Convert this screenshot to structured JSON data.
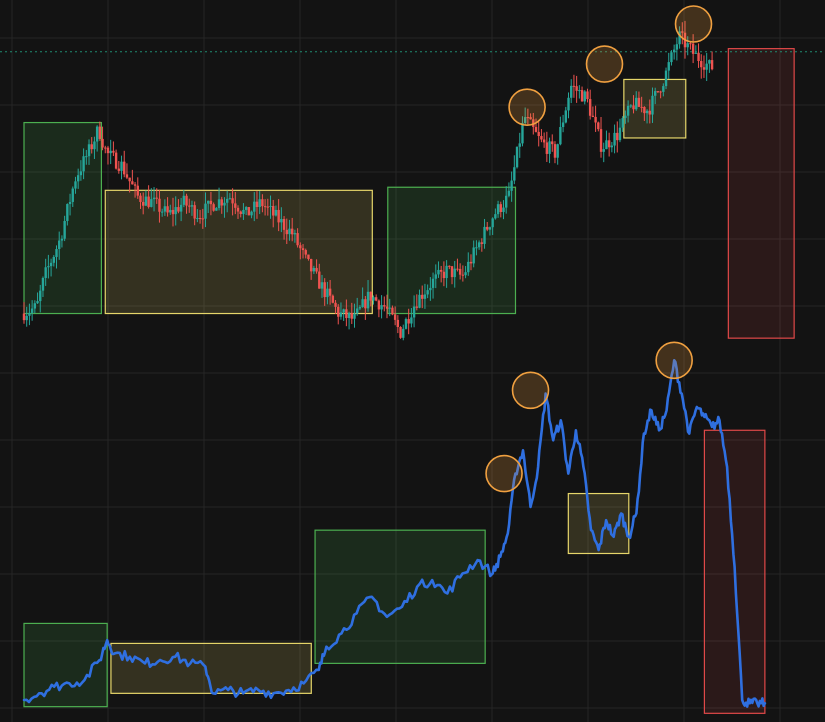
{
  "colors": {
    "background": "#131313",
    "grid": "#262626",
    "bull": "#26a69a",
    "bear": "#ef5350",
    "line": "#2f6fe0",
    "reference": "#1f8a70",
    "zone_green": "#4caf50",
    "zone_yellow": "#e6d66a",
    "zone_red": "#e04848",
    "marker": "#f0a040"
  },
  "chart_data": [
    {
      "type": "candlestick",
      "title": "",
      "xlabel": "",
      "ylabel": "",
      "grid": true,
      "xlim": [
        0,
        100
      ],
      "ylim": [
        0,
        100
      ],
      "reference_line": 91,
      "anchors": [
        [
          0,
          6
        ],
        [
          2,
          8
        ],
        [
          3,
          18
        ],
        [
          5,
          30
        ],
        [
          7,
          50
        ],
        [
          9,
          60
        ],
        [
          10,
          66
        ],
        [
          11,
          58
        ],
        [
          13,
          54
        ],
        [
          15,
          44
        ],
        [
          17,
          42
        ],
        [
          19,
          38
        ],
        [
          21,
          42
        ],
        [
          23,
          38
        ],
        [
          25,
          42
        ],
        [
          27,
          44
        ],
        [
          29,
          38
        ],
        [
          31,
          42
        ],
        [
          33,
          37
        ],
        [
          35,
          32
        ],
        [
          37,
          22
        ],
        [
          39,
          14
        ],
        [
          41,
          6
        ],
        [
          43,
          4
        ],
        [
          45,
          12
        ],
        [
          47,
          8
        ],
        [
          49,
          0
        ],
        [
          51,
          10
        ],
        [
          53,
          16
        ],
        [
          55,
          20
        ],
        [
          57,
          18
        ],
        [
          59,
          28
        ],
        [
          61,
          38
        ],
        [
          63,
          44
        ],
        [
          65,
          70
        ],
        [
          67,
          62
        ],
        [
          69,
          58
        ],
        [
          71,
          80
        ],
        [
          73,
          76
        ],
        [
          75,
          60
        ],
        [
          77,
          64
        ],
        [
          79,
          74
        ],
        [
          81,
          72
        ],
        [
          83,
          82
        ],
        [
          85,
          96
        ],
        [
          87,
          90
        ],
        [
          89,
          86
        ]
      ],
      "zones": [
        {
          "type": "accumulation",
          "color": "green",
          "x0": 0,
          "x1": 10,
          "y0": 6,
          "y1": 68
        },
        {
          "type": "range",
          "color": "yellow",
          "x0": 10.5,
          "x1": 45,
          "y0": 6,
          "y1": 46
        },
        {
          "type": "accumulation",
          "color": "green",
          "x0": 47,
          "x1": 63.5,
          "y0": 6,
          "y1": 47
        },
        {
          "type": "range",
          "color": "yellow",
          "x0": 77.5,
          "x1": 85.5,
          "y0": 63,
          "y1": 82
        },
        {
          "type": "decline",
          "color": "red",
          "x0": 91,
          "x1": 99.5,
          "y0": -2,
          "y1": 92
        }
      ],
      "peaks": [
        {
          "x": 65,
          "y": 73
        },
        {
          "x": 75,
          "y": 87
        },
        {
          "x": 86.5,
          "y": 100
        }
      ]
    },
    {
      "type": "line",
      "title": "",
      "xlabel": "",
      "ylabel": "",
      "grid": true,
      "xlim": [
        0,
        100
      ],
      "ylim": [
        0,
        100
      ],
      "points": [
        [
          0,
          0
        ],
        [
          2,
          2
        ],
        [
          4,
          4
        ],
        [
          6,
          5
        ],
        [
          8,
          6
        ],
        [
          10,
          12
        ],
        [
          11,
          18
        ],
        [
          12,
          14
        ],
        [
          14,
          13
        ],
        [
          16,
          11
        ],
        [
          18,
          12
        ],
        [
          20,
          13
        ],
        [
          22,
          11
        ],
        [
          24,
          10
        ],
        [
          25,
          2
        ],
        [
          27,
          3
        ],
        [
          29,
          2
        ],
        [
          31,
          3
        ],
        [
          33,
          2
        ],
        [
          35,
          3
        ],
        [
          37,
          5
        ],
        [
          39,
          9
        ],
        [
          40,
          16
        ],
        [
          42,
          20
        ],
        [
          44,
          26
        ],
        [
          46,
          31
        ],
        [
          48,
          25
        ],
        [
          50,
          28
        ],
        [
          52,
          34
        ],
        [
          54,
          36
        ],
        [
          56,
          32
        ],
        [
          58,
          38
        ],
        [
          60,
          42
        ],
        [
          62,
          38
        ],
        [
          63,
          43
        ],
        [
          64,
          50
        ],
        [
          65,
          68
        ],
        [
          66,
          75
        ],
        [
          67,
          58
        ],
        [
          68,
          70
        ],
        [
          69,
          92
        ],
        [
          70,
          78
        ],
        [
          71,
          84
        ],
        [
          72,
          68
        ],
        [
          73,
          81
        ],
        [
          74,
          70
        ],
        [
          75,
          51
        ],
        [
          76,
          45
        ],
        [
          77,
          54
        ],
        [
          78,
          49
        ],
        [
          79,
          56
        ],
        [
          80,
          49
        ],
        [
          81,
          56
        ],
        [
          82,
          80
        ],
        [
          83,
          87
        ],
        [
          84,
          81
        ],
        [
          85,
          87
        ],
        [
          86,
          102
        ],
        [
          87,
          92
        ],
        [
          88,
          80
        ],
        [
          89,
          88
        ],
        [
          90,
          85
        ],
        [
          91,
          82
        ],
        [
          92,
          84
        ],
        [
          93,
          70
        ],
        [
          94,
          40
        ],
        [
          95,
          0
        ],
        [
          96,
          -1
        ],
        [
          97,
          -1
        ],
        [
          98,
          -1
        ]
      ],
      "zones": [
        {
          "type": "accumulation",
          "color": "green",
          "x0": 0,
          "x1": 11,
          "y0": -2,
          "y1": 23
        },
        {
          "type": "range",
          "color": "yellow",
          "x0": 11.5,
          "x1": 38,
          "y0": 2,
          "y1": 17
        },
        {
          "type": "accumulation",
          "color": "green",
          "x0": 38.5,
          "x1": 61,
          "y0": 11,
          "y1": 51
        },
        {
          "type": "range",
          "color": "yellow",
          "x0": 72,
          "x1": 80,
          "y0": 44,
          "y1": 62
        },
        {
          "type": "decline",
          "color": "red",
          "x0": 90,
          "x1": 98,
          "y0": -4,
          "y1": 81
        }
      ],
      "peaks": [
        {
          "x": 63.5,
          "y": 68
        },
        {
          "x": 67,
          "y": 93
        },
        {
          "x": 86,
          "y": 102
        }
      ]
    }
  ]
}
